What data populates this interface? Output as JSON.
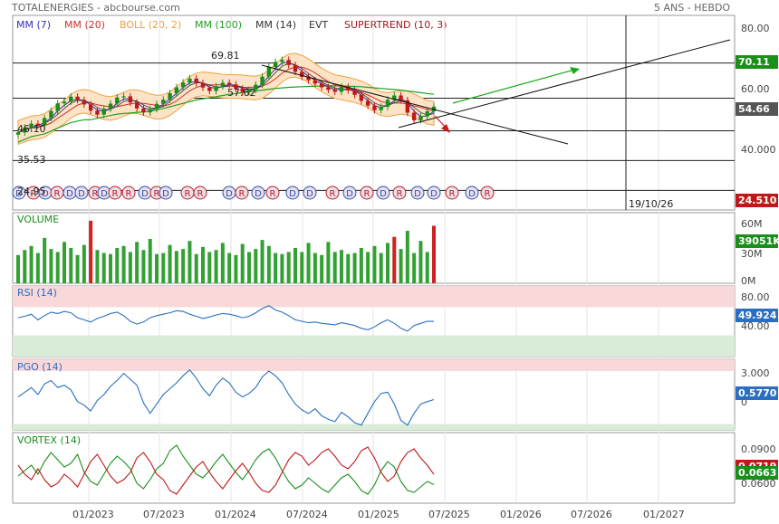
{
  "header": {
    "title": "TOTALENERGIES - abcbourse.com",
    "period": "5 ANS - HEBDO"
  },
  "legend": [
    {
      "text": "MM (7)",
      "color": "#3030c0"
    },
    {
      "text": "MM (20)",
      "color": "#d03030"
    },
    {
      "text": "BOLL (20, 2)",
      "color": "#f0a040"
    },
    {
      "text": "MM (100)",
      "color": "#20a020"
    },
    {
      "text": "MM (14)",
      "color": "#333333"
    },
    {
      "text": "EVT",
      "color": "#333333"
    },
    {
      "text": "SUPERTREND (10, 3)",
      "color": "#a01818"
    }
  ],
  "levels": {
    "l1": "69.81",
    "l2": "57.62",
    "l3": "46.10",
    "l4": "35.53",
    "l5": "24.95"
  },
  "cursor_date": "19/10/26",
  "panels": {
    "volume": "VOLUME",
    "rsi": "RSI (14)",
    "pgo": "PGO (14)",
    "vortex": "VORTEX (14)"
  },
  "price_axis": [
    "80.00",
    "60.00",
    "40.000"
  ],
  "volume_axis": [
    "60M",
    "30M",
    "0M"
  ],
  "rsi_axis": [
    "80.00",
    "40.00"
  ],
  "pgo_axis": [
    "3.000",
    "0"
  ],
  "vortex_axis": [
    "0.0900",
    "0.0600"
  ],
  "badges": {
    "h1": {
      "text": "70.11",
      "color": "#1a8f1a"
    },
    "close": {
      "text": "54.66",
      "color": "#555555"
    },
    "st": {
      "text": "24.510",
      "color": "#c01818"
    },
    "vol": {
      "text": "39051K",
      "color": "#1a8f1a"
    },
    "rsi": {
      "text": "49.924",
      "color": "#2a6fc0"
    },
    "pgo": {
      "text": "0.5770",
      "color": "#2a6fc0"
    },
    "vx1": {
      "text": "0.0719",
      "color": "#c01818"
    },
    "vx2": {
      "text": "0.0663",
      "color": "#1a8f1a"
    }
  },
  "x_labels": [
    "01/2023",
    "07/2023",
    "01/2024",
    "07/2024",
    "01/2025",
    "07/2025",
    "01/2026",
    "07/2026",
    "01/2027"
  ],
  "chart_data": {
    "type": "line",
    "title": "TOTALENERGIES",
    "price_ylim": [
      18,
      87
    ],
    "price": [
      45.5,
      47.2,
      48.6,
      47.9,
      50.6,
      53.1,
      55.8,
      56.4,
      58.2,
      57.0,
      55.4,
      53.2,
      51.8,
      53.9,
      55.7,
      57.9,
      58.3,
      56.1,
      54.0,
      52.6,
      53.8,
      55.6,
      57.1,
      59.4,
      61.5,
      63.2,
      64.6,
      63.0,
      61.4,
      60.2,
      61.9,
      63.1,
      62.5,
      61.0,
      59.8,
      60.6,
      62.4,
      65.3,
      68.7,
      70.5,
      71.2,
      69.4,
      67.0,
      65.2,
      64.0,
      62.8,
      61.5,
      60.6,
      59.9,
      61.7,
      60.4,
      58.8,
      56.7,
      55.0,
      53.4,
      54.6,
      57.1,
      58.6,
      56.9,
      52.5,
      49.8,
      51.2,
      53.0,
      54.66
    ],
    "ma_long": [
      42,
      43,
      44,
      44.5,
      45,
      46,
      47,
      48,
      49,
      49.5,
      50,
      50,
      50.5,
      51,
      51.5,
      52,
      52.2,
      52.4,
      52.6,
      52.8,
      53,
      53.5,
      54,
      54.6,
      55.2,
      55.8,
      56.4,
      57,
      57.4,
      57.8,
      58.2,
      58.6,
      59,
      59.3,
      59.6,
      59.9,
      60.2,
      60.5,
      60.8,
      61.1,
      61.3,
      61.5,
      61.6,
      61.7,
      61.8,
      61.9,
      61.9,
      62,
      62,
      62,
      61.9,
      61.8,
      61.7,
      61.5,
      61.3,
      61.1,
      60.9,
      60.7,
      60.5,
      60.2,
      59.9,
      59.6,
      59.3,
      59
    ],
    "volume_ylim": [
      0,
      70
    ],
    "volume": [
      28,
      33,
      37,
      30,
      45,
      34,
      31,
      41,
      35,
      28,
      38,
      62,
      33,
      30,
      29,
      35,
      37,
      31,
      41,
      33,
      44,
      29,
      30,
      38,
      32,
      34,
      42,
      29,
      36,
      31,
      33,
      40,
      30,
      28,
      39,
      31,
      34,
      43,
      37,
      30,
      29,
      31,
      35,
      31,
      40,
      30,
      28,
      41,
      31,
      33,
      29,
      30,
      35,
      31,
      37,
      30,
      40,
      46,
      34,
      52,
      30,
      42,
      31,
      57
    ],
    "rsi_ylim": [
      0,
      100
    ],
    "rsi": [
      55,
      57,
      60,
      52,
      58,
      63,
      61,
      64,
      62,
      55,
      52,
      49,
      54,
      57,
      61,
      63,
      58,
      50,
      46,
      49,
      55,
      58,
      60,
      62,
      65,
      64,
      60,
      57,
      54,
      56,
      59,
      61,
      60,
      58,
      55,
      57,
      62,
      68,
      72,
      66,
      63,
      58,
      52,
      50,
      48,
      49,
      47,
      46,
      45,
      48,
      46,
      44,
      40,
      38,
      42,
      48,
      52,
      47,
      40,
      36,
      44,
      47,
      50,
      49.9
    ],
    "pgo_ylim": [
      -2,
      4
    ],
    "pgo": [
      0.8,
      1.2,
      1.6,
      1.0,
      1.9,
      2.2,
      1.6,
      1.8,
      1.4,
      0.4,
      0.1,
      -0.4,
      0.5,
      1.0,
      1.7,
      2.2,
      2.8,
      2.3,
      1.8,
      0.3,
      -0.6,
      0.2,
      1.0,
      1.5,
      2.0,
      2.6,
      3.1,
      2.4,
      1.5,
      0.9,
      1.8,
      2.4,
      2.0,
      1.2,
      0.8,
      1.1,
      1.6,
      2.5,
      3.0,
      2.6,
      2.0,
      1.0,
      0.2,
      -0.3,
      -0.6,
      -0.2,
      -0.8,
      -1.1,
      -1.3,
      -0.5,
      -0.9,
      -1.4,
      -1.6,
      -0.6,
      0.4,
      1.1,
      1.2,
      0.2,
      -1.2,
      -1.6,
      -0.6,
      0.2,
      0.4,
      0.58
    ],
    "vortex_ylim": [
      0.056,
      0.095
    ],
    "vortex_plus": [
      0.071,
      0.074,
      0.077,
      0.072,
      0.079,
      0.084,
      0.08,
      0.076,
      0.078,
      0.083,
      0.073,
      0.068,
      0.066,
      0.072,
      0.078,
      0.082,
      0.079,
      0.075,
      0.067,
      0.064,
      0.069,
      0.075,
      0.078,
      0.085,
      0.088,
      0.082,
      0.077,
      0.072,
      0.07,
      0.074,
      0.079,
      0.083,
      0.078,
      0.073,
      0.069,
      0.074,
      0.08,
      0.084,
      0.086,
      0.081,
      0.074,
      0.068,
      0.064,
      0.066,
      0.07,
      0.067,
      0.064,
      0.062,
      0.066,
      0.07,
      0.072,
      0.068,
      0.063,
      0.061,
      0.066,
      0.074,
      0.079,
      0.076,
      0.068,
      0.063,
      0.062,
      0.065,
      0.068,
      0.0663
    ],
    "vortex_minus": [
      0.077,
      0.072,
      0.069,
      0.075,
      0.069,
      0.065,
      0.067,
      0.072,
      0.069,
      0.065,
      0.072,
      0.079,
      0.083,
      0.077,
      0.071,
      0.067,
      0.069,
      0.073,
      0.081,
      0.084,
      0.079,
      0.072,
      0.069,
      0.063,
      0.061,
      0.066,
      0.071,
      0.076,
      0.079,
      0.073,
      0.068,
      0.064,
      0.069,
      0.074,
      0.078,
      0.073,
      0.067,
      0.063,
      0.062,
      0.066,
      0.073,
      0.08,
      0.084,
      0.082,
      0.077,
      0.08,
      0.084,
      0.086,
      0.082,
      0.077,
      0.075,
      0.079,
      0.085,
      0.087,
      0.081,
      0.073,
      0.068,
      0.071,
      0.079,
      0.084,
      0.086,
      0.081,
      0.077,
      0.0719
    ],
    "signals": [
      "D",
      "R",
      "D",
      "R",
      "D",
      "D",
      "R",
      "D",
      "R",
      "R",
      "D",
      "R",
      "D",
      "R",
      "R",
      "D",
      "R",
      "D",
      "R",
      "D",
      "D",
      "R",
      "D",
      "R",
      "D",
      "R",
      "D",
      "D",
      "R",
      "D",
      "R"
    ]
  }
}
